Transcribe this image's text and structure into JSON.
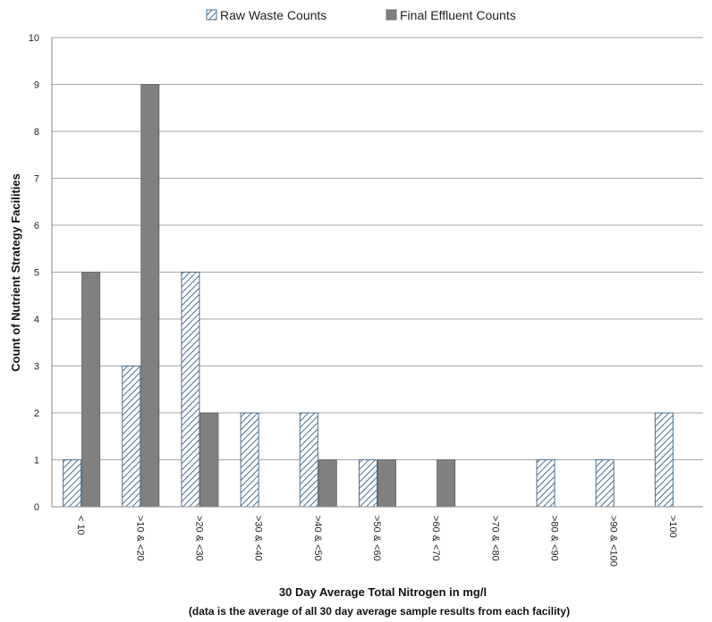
{
  "chart_data": {
    "type": "bar",
    "xlabel": "30 Day Average Total Nitrogen in mg/l",
    "xlabel_note": "(data is the average of all 30 day average sample results from each facility)",
    "ylabel": "Count of Nutrient Strategy Facilities",
    "ylim": [
      0,
      10
    ],
    "yticks": [
      0,
      1,
      2,
      3,
      4,
      5,
      6,
      7,
      8,
      9,
      10
    ],
    "grid": true,
    "legend_position": "top-center",
    "categories": [
      "< 10",
      ">10 & <20",
      ">20 & <30",
      ">30 & <40",
      ">40 & <50",
      ">50 & <60",
      ">60 & <70",
      ">70 & <80",
      ">80 & <90",
      ">90 & <100",
      ">100"
    ],
    "series": [
      {
        "name": "Raw Waste Counts",
        "pattern": "diagonal-hatch",
        "color": "#4a6f8f",
        "values": [
          1,
          3,
          5,
          2,
          2,
          1,
          0,
          0,
          1,
          1,
          2
        ]
      },
      {
        "name": "Final Effluent Counts",
        "pattern": "solid",
        "color": "#808080",
        "values": [
          5,
          9,
          2,
          0,
          1,
          1,
          1,
          0,
          0,
          0,
          0
        ]
      }
    ]
  }
}
